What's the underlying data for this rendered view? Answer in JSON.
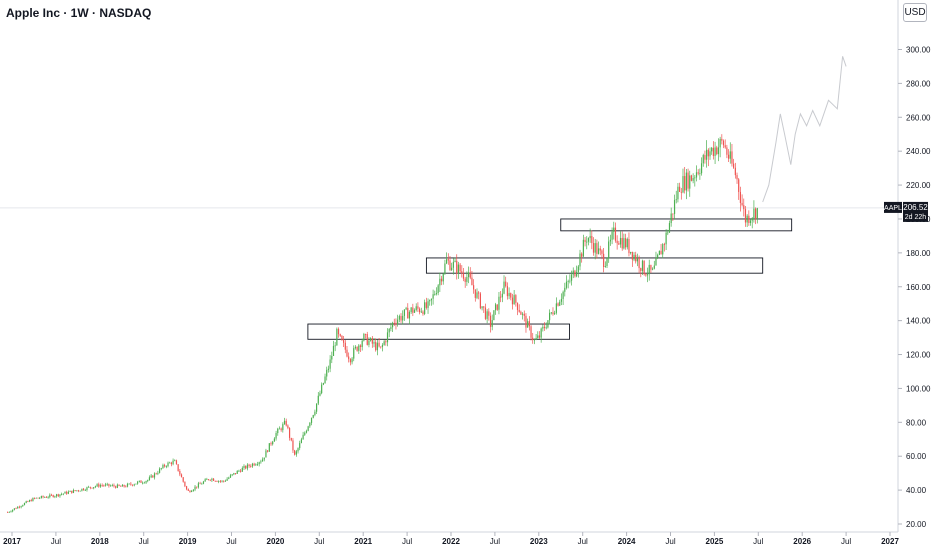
{
  "header": {
    "title": "Apple Inc · 1W · NASDAQ",
    "currency": "USD"
  },
  "price_tag": {
    "symbol": "AAPL",
    "price": "206.52",
    "countdown": "2d 22h"
  },
  "colors": {
    "up": "#26a69a",
    "down": "#ef5350",
    "upGreen": "#4caf50",
    "grid": "#e0e3eb",
    "projection": "#c8cacf"
  },
  "chart_data": {
    "type": "line",
    "title": "Apple Inc · 1W · NASDAQ",
    "x_tick_labels": [
      "2017",
      "Jul",
      "2018",
      "Jul",
      "2019",
      "Jul",
      "2020",
      "Jul",
      "2021",
      "Jul",
      "2022",
      "Jul",
      "2023",
      "Jul",
      "2024",
      "Jul",
      "2025",
      "Jul",
      "2026",
      "Jul",
      "2027"
    ],
    "y_tick_labels": [
      "20.00",
      "40.00",
      "60.00",
      "80.00",
      "100.00",
      "120.00",
      "140.00",
      "160.00",
      "180.00",
      "200.00",
      "220.00",
      "240.00",
      "260.00",
      "280.00",
      "300.00"
    ],
    "ylim": [
      18,
      312
    ],
    "xlim": [
      2016.95,
      2027.05
    ],
    "series": [
      {
        "type": "candlestick-approx",
        "x": [
          2016.95,
          2017.25,
          2017.5,
          2017.75,
          2018.0,
          2018.25,
          2018.55,
          2018.75,
          2018.85,
          2019.0,
          2019.25,
          2019.4,
          2019.6,
          2019.85,
          2020.0,
          2020.12,
          2020.22,
          2020.45,
          2020.62,
          2020.7,
          2020.85,
          2021.0,
          2021.2,
          2021.35,
          2021.55,
          2021.75,
          2021.95,
          2022.05,
          2022.2,
          2022.45,
          2022.6,
          2022.75,
          2022.95,
          2023.0,
          2023.2,
          2023.4,
          2023.55,
          2023.75,
          2023.85,
          2024.0,
          2024.2,
          2024.3,
          2024.45,
          2024.6,
          2024.75,
          2024.95,
          2025.1,
          2025.25,
          2025.35,
          2025.5
        ],
        "close": [
          27,
          35,
          37,
          40,
          43,
          42,
          46,
          55,
          57,
          39,
          47,
          45,
          52,
          58,
          73,
          80,
          60,
          88,
          115,
          132,
          118,
          130,
          123,
          140,
          146,
          148,
          175,
          172,
          165,
          138,
          160,
          150,
          128,
          130,
          150,
          168,
          190,
          175,
          191,
          185,
          170,
          168,
          190,
          220,
          225,
          240,
          245,
          225,
          200,
          206
        ]
      },
      {
        "name": "",
        "type": "projection",
        "x": [
          2025.55,
          2025.62,
          2025.7,
          2025.75,
          2025.8,
          2025.87,
          2025.92,
          2025.98,
          2026.05,
          2026.12,
          2026.2,
          2026.3,
          2026.4,
          2026.46,
          2026.5
        ],
        "y": [
          210,
          220,
          245,
          262,
          250,
          232,
          250,
          262,
          255,
          264,
          255,
          270,
          265,
          296,
          290
        ]
      }
    ],
    "zones": [
      {
        "y_low": 193,
        "y_high": 200,
        "x_start": 2023.25,
        "x_end": 2025.88
      },
      {
        "y_low": 168,
        "y_high": 177,
        "x_start": 2021.72,
        "x_end": 2025.55
      },
      {
        "y_low": 129,
        "y_high": 138,
        "x_start": 2020.37,
        "x_end": 2023.35
      }
    ],
    "last_price": 206.52
  }
}
